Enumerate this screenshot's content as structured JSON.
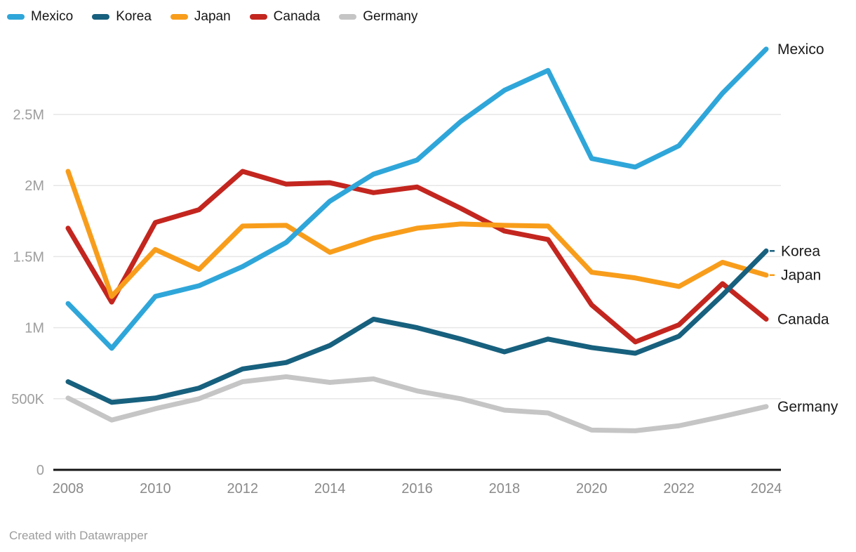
{
  "attribution": "Created with Datawrapper",
  "chart_data": {
    "type": "line",
    "title": "",
    "xlabel": "",
    "ylabel": "",
    "grid": true,
    "legend_position": "top-left",
    "direct_labels": true,
    "x": [
      2008,
      2009,
      2010,
      2011,
      2012,
      2013,
      2014,
      2015,
      2016,
      2017,
      2018,
      2019,
      2020,
      2021,
      2022,
      2023,
      2024
    ],
    "x_tick_labels": [
      "2008",
      "2010",
      "2012",
      "2014",
      "2016",
      "2018",
      "2020",
      "2022",
      "2024"
    ],
    "y_ticks": [
      {
        "value": 2500000,
        "label": "2.5M"
      },
      {
        "value": 2000000,
        "label": "2M"
      },
      {
        "value": 1500000,
        "label": "1.5M"
      },
      {
        "value": 1000000,
        "label": "1M"
      },
      {
        "value": 500000,
        "label": "500K"
      },
      {
        "value": 0,
        "label": "0"
      }
    ],
    "ylim": [
      0,
      3000000
    ],
    "series": [
      {
        "name": "Mexico",
        "color": "#2FA6D9",
        "values": [
          1170000,
          855000,
          1220000,
          1295000,
          1430000,
          1600000,
          1890000,
          2080000,
          2180000,
          2450000,
          2670000,
          2810000,
          2190000,
          2130000,
          2280000,
          2650000,
          2960000
        ]
      },
      {
        "name": "Korea",
        "color": "#17607E",
        "values": [
          620000,
          475000,
          505000,
          575000,
          710000,
          755000,
          875000,
          1060000,
          1000000,
          920000,
          830000,
          920000,
          860000,
          820000,
          940000,
          1230000,
          1540000
        ]
      },
      {
        "name": "Japan",
        "color": "#F89D1B",
        "values": [
          2100000,
          1220000,
          1550000,
          1410000,
          1715000,
          1720000,
          1530000,
          1630000,
          1700000,
          1730000,
          1720000,
          1715000,
          1390000,
          1350000,
          1290000,
          1460000,
          1370000
        ]
      },
      {
        "name": "Canada",
        "color": "#C3261F",
        "values": [
          1700000,
          1180000,
          1740000,
          1830000,
          2100000,
          2010000,
          2020000,
          1950000,
          1990000,
          1840000,
          1680000,
          1620000,
          1160000,
          900000,
          1020000,
          1310000,
          1060000
        ]
      },
      {
        "name": "Germany",
        "color": "#C5C5C5",
        "values": [
          505000,
          350000,
          430000,
          500000,
          620000,
          655000,
          615000,
          640000,
          555000,
          500000,
          420000,
          400000,
          280000,
          275000,
          310000,
          375000,
          445000
        ]
      }
    ],
    "style": {
      "grid_color": "#e6e6e6",
      "axis_color": "#151515",
      "y_tick_label_color": "#9e9e9e",
      "x_tick_label_color": "#8a8a8a",
      "direct_label_color": "#1a1a1a"
    }
  }
}
